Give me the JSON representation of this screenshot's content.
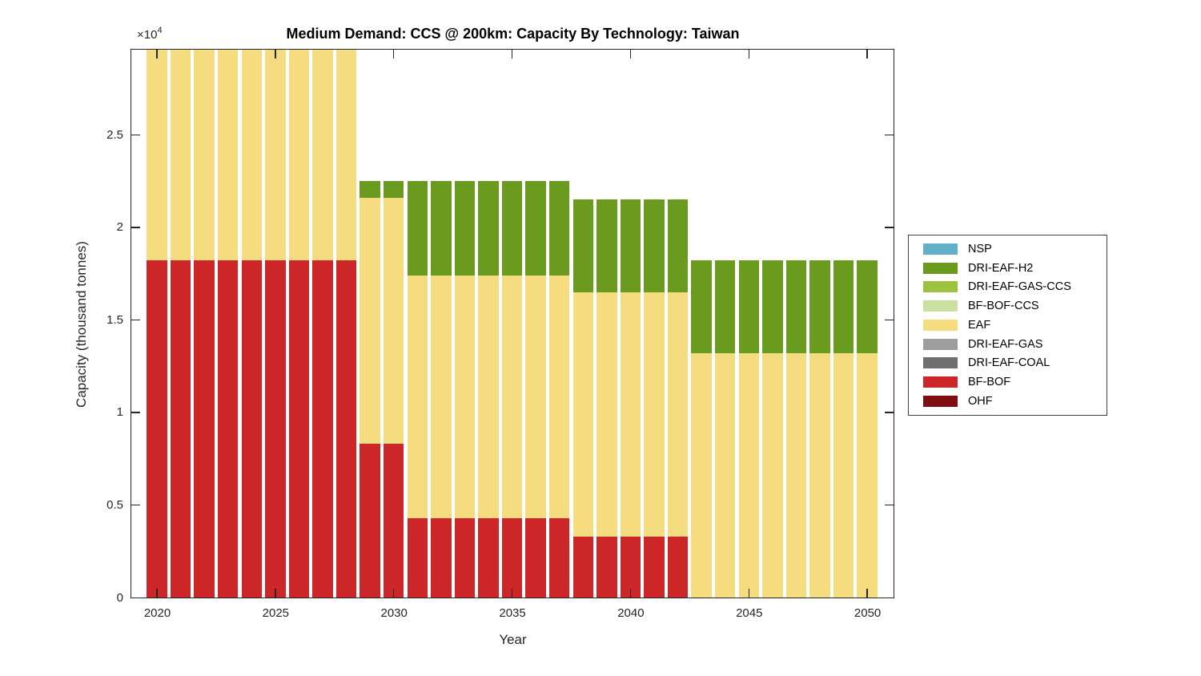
{
  "figure": {
    "title": "Medium Demand: CCS @ 200km: Capacity By Technology: Taiwan",
    "xlabel": "Year",
    "ylabel": "Capacity (thousand tonnes)",
    "y_multiplier_base": "×10",
    "y_multiplier_exponent": "4"
  },
  "legend": {
    "items": [
      {
        "label": "NSP",
        "color": "#63b0c9"
      },
      {
        "label": "DRI-EAF-H2",
        "color": "#6b9b1e"
      },
      {
        "label": "DRI-EAF-GAS-CCS",
        "color": "#9cc23e"
      },
      {
        "label": "BF-BOF-CCS",
        "color": "#c9e0a1"
      },
      {
        "label": "EAF",
        "color": "#f5dc7e"
      },
      {
        "label": "DRI-EAF-GAS",
        "color": "#9d9d9d"
      },
      {
        "label": "DRI-EAF-COAL",
        "color": "#6f6f6f"
      },
      {
        "label": "BF-BOF",
        "color": "#cc2628"
      },
      {
        "label": "OHF",
        "color": "#7d0d10"
      }
    ]
  },
  "chart_data": {
    "type": "bar",
    "stacked": true,
    "title": "Medium Demand: CCS @ 200km: Capacity By Technology: Taiwan",
    "xlabel": "Year",
    "ylabel": "Capacity (thousand tonnes)",
    "units": "values in 10^4 thousand tonnes (y-axis shows ×10^4 multiplier)",
    "xlim": [
      2018.85,
      2051.15
    ],
    "ylim": [
      0,
      2.96
    ],
    "xticks": [
      2020,
      2025,
      2030,
      2035,
      2040,
      2045,
      2050
    ],
    "yticks": [
      0,
      0.5,
      1,
      1.5,
      2,
      2.5
    ],
    "ytick_labels": [
      "0",
      "0.5",
      "1",
      "1.5",
      "2",
      "2.5"
    ],
    "bar_years_start": 2020,
    "bar_years_end": 2050,
    "legend_position": "right-outside",
    "grid": false,
    "note": "Bars for 2020-2028 extend above the y-axis upper limit and are clipped at the top of the plot box.",
    "groups": [
      {
        "years": [
          2020,
          2028
        ],
        "segments": [
          {
            "tech": "BF-BOF",
            "from": 0,
            "to": 1.82
          },
          {
            "tech": "EAF",
            "from": 1.82,
            "to": 2.96,
            "clipped": true
          }
        ]
      },
      {
        "years": [
          2029,
          2030
        ],
        "segments": [
          {
            "tech": "BF-BOF",
            "from": 0,
            "to": 0.83
          },
          {
            "tech": "EAF",
            "from": 0.83,
            "to": 2.16
          },
          {
            "tech": "DRI-EAF-H2",
            "from": 2.16,
            "to": 2.25
          }
        ]
      },
      {
        "years": [
          2031,
          2037
        ],
        "segments": [
          {
            "tech": "BF-BOF",
            "from": 0,
            "to": 0.43
          },
          {
            "tech": "EAF",
            "from": 0.43,
            "to": 1.74
          },
          {
            "tech": "DRI-EAF-H2",
            "from": 1.74,
            "to": 2.25
          }
        ]
      },
      {
        "years": [
          2038,
          2042
        ],
        "segments": [
          {
            "tech": "BF-BOF",
            "from": 0,
            "to": 0.33
          },
          {
            "tech": "EAF",
            "from": 0.33,
            "to": 1.65
          },
          {
            "tech": "DRI-EAF-H2",
            "from": 1.65,
            "to": 2.15
          }
        ]
      },
      {
        "years": [
          2043,
          2050
        ],
        "segments": [
          {
            "tech": "EAF",
            "from": 0,
            "to": 1.32
          },
          {
            "tech": "DRI-EAF-H2",
            "from": 1.32,
            "to": 1.82
          }
        ]
      }
    ]
  }
}
